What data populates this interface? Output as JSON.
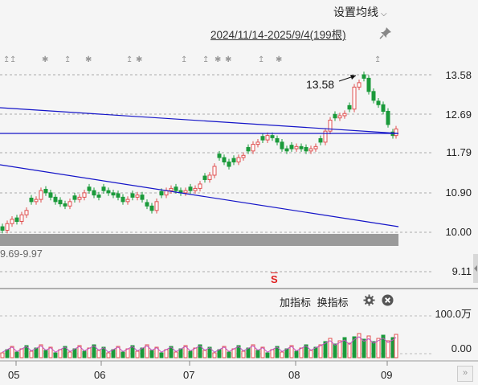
{
  "header": {
    "settings_label": "设置均线",
    "range_label": "2024/11/14-2025/9/4(199根)"
  },
  "price_axis": {
    "ticks": [
      "13.58",
      "12.69",
      "11.79",
      "10.90",
      "10.00",
      "9.11"
    ]
  },
  "annotations": {
    "high_label": "13.58",
    "band_label": "9.69-9.97",
    "signal_marker": "S"
  },
  "indicator_toolbar": {
    "add_label": "加指标",
    "switch_label": "换指标"
  },
  "volume_axis": {
    "ticks": [
      "100.0万",
      "0.00"
    ]
  },
  "x_axis": {
    "months": [
      "05",
      "06",
      "07",
      "08",
      "09"
    ]
  },
  "icons": [
    "chevron-down-icon",
    "pin-icon",
    "gear-icon",
    "close-icon",
    "expand-icon"
  ],
  "colors": {
    "up": "#e05050",
    "down": "#1a9a3a",
    "trendline": "#1414c8",
    "ma_line": "#c050c0",
    "signal": "#e02020"
  }
}
